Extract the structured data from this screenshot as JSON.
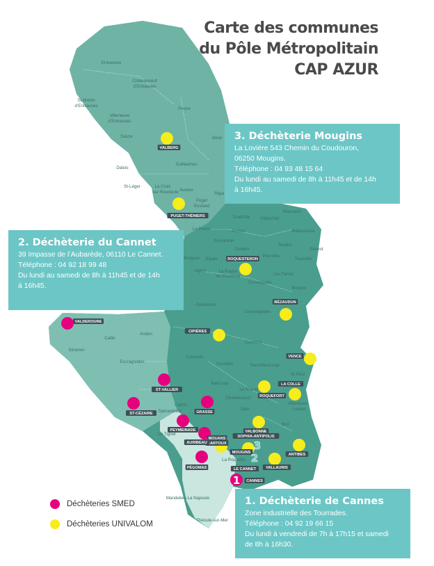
{
  "title": {
    "line1": "Carte des communes",
    "line2": "du Pôle Métropolitain",
    "line3": "CAP AZUR"
  },
  "colors": {
    "smed": "#e6007e",
    "univalom": "#f7ec1c",
    "panel": "#6cc6c6",
    "land_light": "#7fbfb2",
    "land_dark": "#4a9e8e",
    "land_coast": "#c9e6df"
  },
  "panels": {
    "mougins": {
      "title": "3. Déchèterie Mougins",
      "address1": "La Lovière 543 Chemin du Coudouron,",
      "address2": "06250 Mougins.",
      "phone": "Téléphone : 04 93 48 15 64",
      "hours1": "Du lundi au samedi de 8h à 11h45 et de 14h",
      "hours2": "à 16h45."
    },
    "cannet": {
      "title": "2. Déchèterie du Cannet",
      "address1": "39 Impasse de l’Aubarède, 06110 Le Cannet.",
      "phone": "Téléphone : 04 92 18 99 48",
      "hours1": "Du lundi au samedi de 8h à 11h45 et de 14h",
      "hours2": "à 16h45."
    },
    "cannes": {
      "title": "1. Déchèterie de Cannes",
      "address1": "Zone industrielle des Tourrades.",
      "phone": "Téléphone : 04 92 19 66 15",
      "hours1": "Du lundi à vendredi de 7h à 17h15 et samedi",
      "hours2": "de 8h à 16h30."
    }
  },
  "legend": {
    "smed": "Déchèteries SMED",
    "univalom": "Déchèteries UNIVALOM"
  },
  "map": {
    "places": {
      "entraunes": "Entraunes",
      "chateauneuf1": "Chateauneuf",
      "chateauneuf2": "d’Entraunes",
      "stmartin1": "St-Martin",
      "stmartin2": "d’Entraunes",
      "villeneuve1": "Villeneuve",
      "villeneuve2": "d’Entraunes",
      "peone": "Peone",
      "sauze": "Sauze",
      "beuil": "Beuil",
      "guillaumes": "Guillaumes",
      "daluis": "Daluis",
      "stleger": "St-Léger",
      "lacroix1": "La Croix",
      "lacroix2": "sur Roudoule",
      "auvare": "Auvare",
      "puget1": "Puget",
      "puget2": "Rostand",
      "rigaud": "Rigaud",
      "lapenne": "La Penne",
      "ascros": "Ascros",
      "touetvar": "Touët/Var",
      "villarsvar": "Villars/Var",
      "massoins": "Massoins",
      "malaussene": "Malaussène",
      "stantonin": "St-Antonin",
      "cuebris": "Cuebris",
      "pierrefeu": "Pierrefeu",
      "toudon": "Toudon",
      "revest": "Revest",
      "tourrette": "Tourrette",
      "sigale": "Sigale",
      "aiglun": "Aiglun",
      "collongues": "Collongues",
      "laroque1": "La Roque",
      "laroque2": "en Provence",
      "lesferres": "Les Ferres",
      "conségudes": "Conségudes",
      "bouyon": "Bouyon",
      "greolieres": "Gréolières",
      "coursegoules": "Coursegoules",
      "andon": "Andon",
      "caille": "Caille",
      "seranon": "Séranon",
      "coursmes": "Courmes",
      "caussols": "Caussols",
      "gourdon": "Gourdon",
      "tourrettesloup": "Tourrettes/Loup",
      "escragnolles": "Escragnolles",
      "stpaul": "St-Paul",
      "barloup": "Bar/Loup",
      "lerouret": "Le Rouret",
      "chateauneuf": "Chateauneuf",
      "villeneuveloubet1": "Villeneuve",
      "villeneuveloubet2": "Loubet",
      "cabris": "Cabris",
      "spéracèdes": "Spéracèdes",
      "letignet": "Le Tignet",
      "opio": "Opio",
      "biot": "Biot",
      "laroquette": "La Roquette",
      "mandelieu": "Mandelieu-La Napoule",
      "theoule": "Théoule-sur-Mer"
    },
    "tags": {
      "valberg": "VALBERG",
      "puget": "PUGET-THÉNIERS",
      "roquesteron": "ROQUESTERON",
      "bezaudun": "BÉZAUDUN",
      "valderoure": "VALDEROURE",
      "cipieres": "CIPIÈRES",
      "vence": "VENCE",
      "stvallier": "ST-VALLIER",
      "lacolle": "LA COLLE",
      "roquefort": "ROQUEFORT",
      "stcezaire": "ST-CÉZAIRE",
      "grasse": "GRASSE",
      "peymeinade": "PEYMEINADE",
      "valbonne1": "VALBONNE",
      "valbonne2": "SOPHIA-ANTIPOLIS",
      "mouans1": "MOUANS",
      "mouans2": "SARTOUX",
      "auribeau": "AURIBEAU",
      "mougins": "MOUGINS",
      "antibes": "ANTIBES",
      "pegomas": "PÉGOMAS",
      "lecannet": "LE CANNET",
      "vallauris": "VALLAURIS",
      "cannes": "CANNES"
    },
    "numbers": {
      "n1": "1",
      "n2": "2",
      "n3": "3"
    }
  }
}
